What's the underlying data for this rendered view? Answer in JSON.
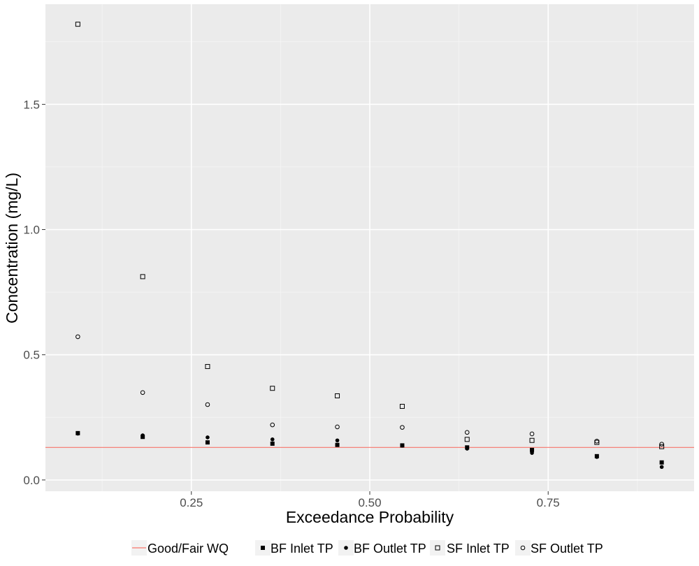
{
  "chart_data": {
    "type": "scatter",
    "title": "",
    "xlabel": "Exceedance Probability",
    "ylabel": "Concentration (mg/L)",
    "xlim": [
      0.0455,
      0.9545
    ],
    "ylim": [
      -0.045,
      1.9
    ],
    "x_ticks": [
      {
        "value": 0.25,
        "label": "0.25"
      },
      {
        "value": 0.5,
        "label": "0.50"
      },
      {
        "value": 0.75,
        "label": "0.75"
      }
    ],
    "y_ticks": [
      {
        "value": 0.0,
        "label": "0.0"
      },
      {
        "value": 0.5,
        "label": "0.5"
      },
      {
        "value": 1.0,
        "label": "1.0"
      },
      {
        "value": 1.5,
        "label": "1.5"
      }
    ],
    "grid": true,
    "legend_position": "bottom",
    "reference_line": {
      "name": "Good/Fair WQ",
      "y": 0.13,
      "color": "#f8766d"
    },
    "x": [
      0.0909,
      0.1818,
      0.2727,
      0.3636,
      0.4545,
      0.5455,
      0.6364,
      0.7273,
      0.8182,
      0.9091
    ],
    "series": [
      {
        "name": "BF Inlet TP",
        "marker": "filled-square",
        "values": [
          0.187,
          0.172,
          0.15,
          0.145,
          0.14,
          0.138,
          0.13,
          0.12,
          0.095,
          0.07
        ]
      },
      {
        "name": "BF Outlet TP",
        "marker": "filled-circle",
        "values": [
          0.185,
          0.178,
          0.17,
          0.162,
          0.158,
          0.137,
          0.125,
          0.108,
          0.092,
          0.052
        ]
      },
      {
        "name": "SF Inlet TP",
        "marker": "open-square",
        "values": [
          1.82,
          0.812,
          0.453,
          0.366,
          0.336,
          0.294,
          0.162,
          0.158,
          0.15,
          0.133
        ]
      },
      {
        "name": "SF Outlet TP",
        "marker": "open-circle",
        "values": [
          0.572,
          0.349,
          0.301,
          0.22,
          0.212,
          0.21,
          0.19,
          0.184,
          0.155,
          0.143
        ]
      }
    ]
  }
}
